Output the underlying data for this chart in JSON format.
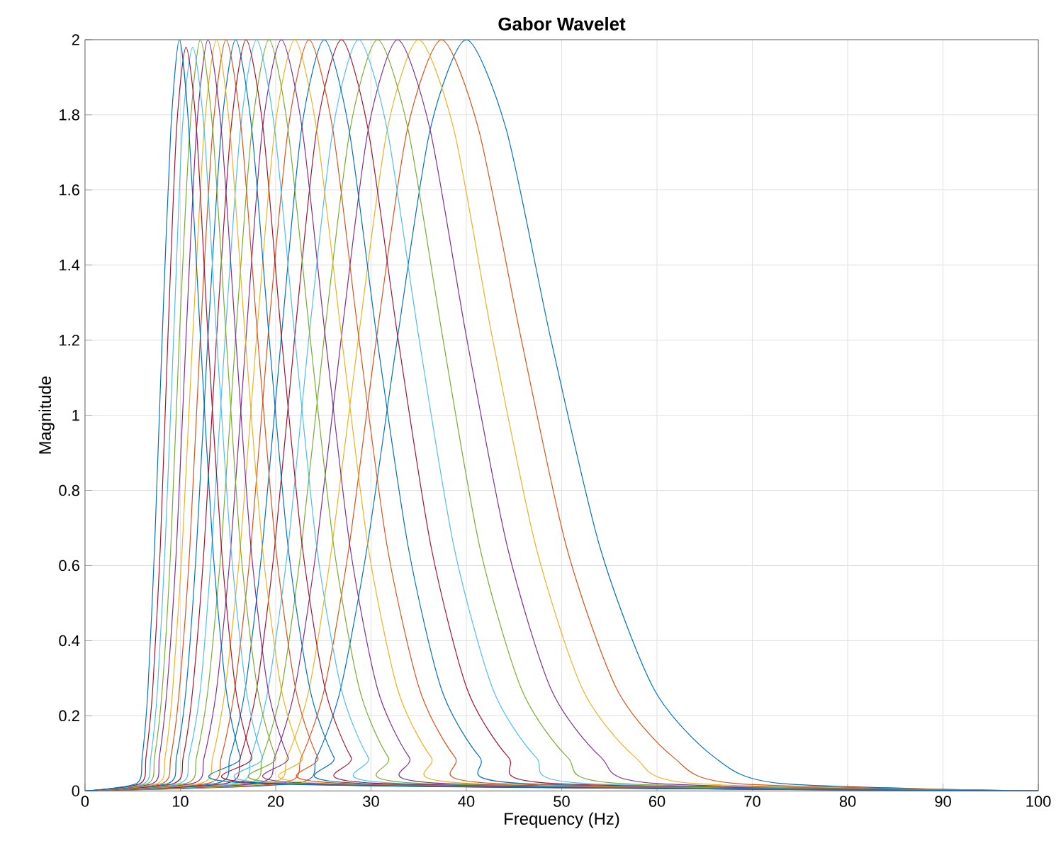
{
  "chart_data": {
    "type": "line",
    "title": "Gabor Wavelet",
    "xlabel": "Frequency (Hz)",
    "ylabel": "Magnitude",
    "xlim": [
      0,
      100
    ],
    "ylim": [
      0,
      2
    ],
    "xticks": [
      0,
      10,
      20,
      30,
      40,
      50,
      60,
      70,
      80,
      90,
      100
    ],
    "yticks": [
      0,
      0.2,
      0.4,
      0.6,
      0.8,
      1,
      1.2,
      1.4,
      1.6,
      1.8,
      2
    ],
    "grid": true,
    "marker": "none",
    "line_style": "solid",
    "series": [
      {
        "color": "#0072bd",
        "x": [
          0,
          22.0,
          24.3,
          26.8,
          29.6,
          32.8,
          36.2,
          40.0,
          44.2,
          48.8,
          54.0,
          59.7,
          66.0,
          72.9,
          100
        ],
        "values": [
          0,
          0.02,
          0.09,
          0.27,
          0.65,
          1.21,
          1.76,
          2,
          1.76,
          1.21,
          0.65,
          0.27,
          0.09,
          0.02,
          0
        ]
      },
      {
        "color": "#d95319",
        "x": [
          0,
          20.5,
          22.7,
          25.1,
          27.7,
          30.6,
          33.8,
          37.4,
          41.3,
          45.7,
          50.5,
          55.8,
          61.7,
          68.1,
          100
        ],
        "values": [
          0,
          0.02,
          0.09,
          0.27,
          0.65,
          1.21,
          1.76,
          2,
          1.76,
          1.21,
          0.65,
          0.27,
          0.09,
          0.02,
          0
        ]
      },
      {
        "color": "#edb120",
        "x": [
          0,
          19.2,
          21.2,
          23.5,
          25.9,
          28.7,
          31.7,
          35.0,
          38.7,
          42.7,
          47.3,
          52.2,
          57.7,
          63.8,
          100
        ],
        "values": [
          0,
          0.02,
          0.09,
          0.27,
          0.65,
          1.21,
          1.76,
          2,
          1.76,
          1.21,
          0.65,
          0.27,
          0.09,
          0.02,
          0
        ]
      },
      {
        "color": "#7e2f8e",
        "x": [
          0,
          18.0,
          19.9,
          22.0,
          24.3,
          26.9,
          29.7,
          32.8,
          36.2,
          40.0,
          44.3,
          48.9,
          54.1,
          59.8,
          100
        ],
        "values": [
          0,
          0.02,
          0.09,
          0.27,
          0.65,
          1.21,
          1.76,
          2,
          1.76,
          1.21,
          0.65,
          0.27,
          0.09,
          0.02,
          0
        ]
      },
      {
        "color": "#77ac30",
        "x": [
          0,
          16.9,
          18.6,
          20.6,
          22.7,
          25.1,
          27.8,
          30.7,
          33.9,
          37.5,
          41.4,
          45.8,
          50.6,
          55.9,
          100
        ],
        "values": [
          0,
          0.02,
          0.09,
          0.27,
          0.65,
          1.21,
          1.76,
          2,
          1.76,
          1.21,
          0.65,
          0.27,
          0.09,
          0.02,
          0
        ]
      },
      {
        "color": "#4dbeee",
        "x": [
          0,
          15.8,
          17.4,
          19.2,
          21.3,
          23.5,
          26.0,
          28.7,
          31.7,
          35.0,
          38.7,
          42.8,
          47.3,
          52.3,
          100
        ],
        "values": [
          0,
          0.02,
          0.09,
          0.27,
          0.65,
          1.21,
          1.76,
          2,
          1.76,
          1.21,
          0.65,
          0.27,
          0.09,
          0.02,
          0
        ]
      },
      {
        "color": "#a2142f",
        "x": [
          0,
          14.8,
          16.3,
          18.0,
          19.9,
          22.0,
          24.3,
          26.9,
          29.7,
          32.8,
          36.3,
          40.1,
          44.4,
          49.0,
          100
        ],
        "values": [
          0,
          0.02,
          0.09,
          0.27,
          0.65,
          1.21,
          1.76,
          2,
          1.76,
          1.21,
          0.65,
          0.27,
          0.09,
          0.02,
          0
        ]
      },
      {
        "color": "#0072bd",
        "x": [
          0,
          13.8,
          15.2,
          16.8,
          18.6,
          20.6,
          22.7,
          25.1,
          27.7,
          30.6,
          33.9,
          37.4,
          41.4,
          45.7,
          100
        ],
        "values": [
          0,
          0.02,
          0.09,
          0.27,
          0.65,
          1.21,
          1.76,
          2,
          1.76,
          1.21,
          0.65,
          0.27,
          0.09,
          0.02,
          0
        ]
      },
      {
        "color": "#d95319",
        "x": [
          0,
          12.9,
          14.3,
          15.7,
          17.4,
          19.2,
          21.3,
          23.5,
          26.0,
          28.7,
          31.7,
          35.1,
          38.8,
          42.8,
          100
        ],
        "values": [
          0,
          0.02,
          0.09,
          0.27,
          0.65,
          1.21,
          1.76,
          2,
          1.76,
          1.21,
          0.65,
          0.27,
          0.09,
          0.02,
          0
        ]
      },
      {
        "color": "#edb120",
        "x": [
          0,
          12.1,
          13.4,
          14.7,
          16.3,
          18.0,
          19.9,
          22.0,
          24.3,
          26.9,
          29.7,
          32.8,
          36.3,
          40.1,
          100
        ],
        "values": [
          0,
          0.02,
          0.09,
          0.27,
          0.65,
          1.21,
          1.76,
          2,
          1.76,
          1.21,
          0.65,
          0.27,
          0.09,
          0.02,
          0
        ]
      },
      {
        "color": "#7e2f8e",
        "x": [
          0,
          11.3,
          12.5,
          13.8,
          15.3,
          16.9,
          18.6,
          20.6,
          22.8,
          25.2,
          27.8,
          30.7,
          34.0,
          37.5,
          100
        ],
        "values": [
          0,
          0.02,
          0.09,
          0.27,
          0.65,
          1.21,
          1.76,
          2,
          1.76,
          1.21,
          0.65,
          0.27,
          0.09,
          0.02,
          0
        ]
      },
      {
        "color": "#77ac30",
        "x": [
          0,
          10.6,
          11.7,
          12.9,
          14.3,
          15.8,
          17.5,
          19.3,
          21.3,
          23.6,
          26.1,
          28.8,
          31.8,
          35.2,
          100
        ],
        "values": [
          0,
          0.02,
          0.09,
          0.27,
          0.65,
          1.21,
          1.76,
          2,
          1.76,
          1.21,
          0.65,
          0.27,
          0.09,
          0.02,
          0
        ]
      },
      {
        "color": "#4dbeee",
        "x": [
          0,
          9.9,
          10.9,
          12.1,
          13.3,
          14.7,
          16.3,
          18.0,
          19.9,
          22.0,
          24.3,
          26.9,
          29.7,
          32.8,
          100
        ],
        "values": [
          0,
          0.02,
          0.09,
          0.27,
          0.65,
          1.21,
          1.76,
          2,
          1.76,
          1.21,
          0.65,
          0.27,
          0.09,
          0.02,
          0
        ]
      },
      {
        "color": "#a2142f",
        "x": [
          0,
          9.3,
          10.3,
          11.3,
          12.5,
          13.8,
          15.3,
          16.9,
          18.7,
          20.6,
          22.8,
          25.2,
          27.9,
          30.8,
          100
        ],
        "values": [
          0,
          0.02,
          0.09,
          0.27,
          0.65,
          1.21,
          1.76,
          2,
          1.76,
          1.21,
          0.65,
          0.27,
          0.09,
          0.02,
          0
        ]
      },
      {
        "color": "#0072bd",
        "x": [
          0,
          8.7,
          9.6,
          10.6,
          11.7,
          12.9,
          14.3,
          15.8,
          17.5,
          19.3,
          21.3,
          23.6,
          26.1,
          28.8,
          100
        ],
        "values": [
          0,
          0.02,
          0.09,
          0.27,
          0.65,
          1.21,
          1.76,
          2,
          1.76,
          1.21,
          0.65,
          0.27,
          0.09,
          0.02,
          0
        ]
      },
      {
        "color": "#d95319",
        "x": [
          0,
          8.1,
          9.0,
          9.9,
          11.0,
          12.1,
          13.4,
          14.8,
          16.4,
          18.1,
          20.0,
          22.1,
          24.4,
          27.0,
          100
        ],
        "values": [
          0,
          0.02,
          0.09,
          0.27,
          0.65,
          1.21,
          1.76,
          2,
          1.76,
          1.21,
          0.65,
          0.27,
          0.09,
          0.02,
          0
        ]
      },
      {
        "color": "#edb120",
        "x": [
          0,
          7.6,
          8.4,
          9.2,
          10.2,
          11.3,
          12.5,
          13.8,
          15.2,
          16.8,
          18.6,
          20.6,
          22.8,
          25.1,
          100
        ],
        "values": [
          0,
          0.02,
          0.09,
          0.27,
          0.65,
          1.21,
          1.76,
          2,
          1.76,
          1.21,
          0.65,
          0.27,
          0.09,
          0.02,
          0
        ]
      },
      {
        "color": "#7e2f8e",
        "x": [
          0,
          7.1,
          7.8,
          8.6,
          9.6,
          10.6,
          11.7,
          12.9,
          14.3,
          15.8,
          17.4,
          19.2,
          21.3,
          23.5,
          100
        ],
        "values": [
          0,
          0.02,
          0.09,
          0.27,
          0.65,
          1.21,
          1.76,
          2,
          1.76,
          1.21,
          0.65,
          0.27,
          0.09,
          0.02,
          0
        ]
      },
      {
        "color": "#77ac30",
        "x": [
          0,
          6.6,
          7.3,
          8.1,
          9.0,
          9.9,
          11.0,
          12.1,
          13.4,
          14.8,
          16.3,
          18.1,
          20.0,
          22.0,
          100
        ],
        "values": [
          0,
          0.02,
          0.09,
          0.27,
          0.65,
          1.21,
          1.76,
          2,
          1.76,
          1.21,
          0.65,
          0.27,
          0.09,
          0.02,
          0
        ]
      },
      {
        "color": "#4dbeee",
        "x": [
          0,
          6.2,
          6.9,
          7.6,
          8.4,
          9.3,
          10.2,
          11.3,
          12.5,
          13.8,
          15.3,
          16.9,
          18.6,
          20.6,
          100
        ],
        "values": [
          0,
          0.02,
          0.09,
          0.27,
          0.65,
          1.21,
          1.76,
          1.98,
          1.76,
          1.21,
          0.65,
          0.27,
          0.09,
          0.02,
          0
        ]
      },
      {
        "color": "#a2142f",
        "x": [
          0,
          5.8,
          6.4,
          7.1,
          7.9,
          8.7,
          9.6,
          10.6,
          11.7,
          12.9,
          14.3,
          15.8,
          17.5,
          19.3,
          100
        ],
        "values": [
          0,
          0.02,
          0.09,
          0.27,
          0.65,
          1.21,
          1.76,
          1.98,
          1.76,
          1.21,
          0.65,
          0.27,
          0.09,
          0.02,
          0
        ]
      },
      {
        "color": "#0072bd",
        "x": [
          0,
          5.4,
          6.0,
          6.6,
          7.3,
          8.1,
          9.0,
          9.9,
          10.9,
          12.1,
          13.4,
          14.8,
          16.3,
          18.0,
          100
        ],
        "values": [
          0,
          0.02,
          0.09,
          0.27,
          0.65,
          1.21,
          1.76,
          2,
          1.76,
          1.21,
          0.65,
          0.27,
          0.09,
          0.02,
          0
        ]
      }
    ]
  }
}
